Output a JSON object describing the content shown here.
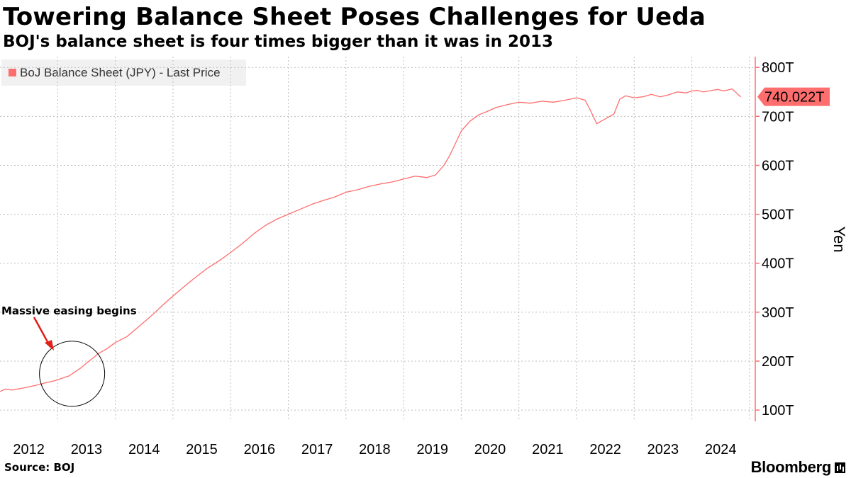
{
  "header": {
    "title": "Towering Balance Sheet Poses Challenges for Ueda",
    "subtitle": "BOJ's balance sheet is four times bigger than it was in 2013"
  },
  "footer": {
    "source": "Source: BOJ",
    "brand": "Bloomberg"
  },
  "colors": {
    "series": "#ff6e6e",
    "axis": "#ff6e6e",
    "grid": "#bdbdbd"
  },
  "chart_data": {
    "type": "line",
    "title": "Towering Balance Sheet Poses Challenges for Ueda",
    "subtitle": "BOJ's balance sheet is four times bigger than it was in 2013",
    "xlabel": "",
    "ylabel": "Yen",
    "ylim": [
      77,
      822
    ],
    "xlim": [
      2012.0,
      2025.1
    ],
    "y_ticks": [
      100,
      200,
      300,
      400,
      500,
      600,
      700,
      800
    ],
    "y_tick_labels": [
      "100T",
      "200T",
      "300T",
      "400T",
      "500T",
      "600T",
      "700T",
      "800T"
    ],
    "x_tick_labels": [
      "2012",
      "2013",
      "2014",
      "2015",
      "2016",
      "2017",
      "2018",
      "2019",
      "2020",
      "2021",
      "2022",
      "2023",
      "2024"
    ],
    "x_tick_positions": [
      2012,
      2013,
      2014,
      2015,
      2016,
      2017,
      2018,
      2019,
      2020,
      2021,
      2022,
      2023,
      2024
    ],
    "legend": {
      "label": "BoJ Balance Sheet (JPY) - Last Price",
      "position": "top-left"
    },
    "last_value": {
      "label": "740.022T",
      "value": 740.022
    },
    "annotation": {
      "text": "Massive easing begins",
      "target_x": 2013.25,
      "target_y": 180
    },
    "grid": true,
    "series": [
      {
        "name": "BoJ Balance Sheet (JPY) - Last Price",
        "x": [
          2012.0,
          2012.1,
          2012.2,
          2012.4,
          2012.6,
          2012.8,
          2012.95,
          2013.0,
          2013.1,
          2013.2,
          2013.3,
          2013.4,
          2013.5,
          2013.6,
          2013.7,
          2013.85,
          2014.0,
          2014.2,
          2014.4,
          2014.6,
          2014.8,
          2015.0,
          2015.2,
          2015.4,
          2015.6,
          2015.8,
          2016.0,
          2016.2,
          2016.4,
          2016.6,
          2016.8,
          2017.0,
          2017.2,
          2017.4,
          2017.6,
          2017.8,
          2018.0,
          2018.2,
          2018.4,
          2018.6,
          2018.8,
          2019.0,
          2019.2,
          2019.4,
          2019.55,
          2019.7,
          2019.8,
          2019.9,
          2020.0,
          2020.15,
          2020.3,
          2020.45,
          2020.6,
          2020.8,
          2021.0,
          2021.2,
          2021.4,
          2021.6,
          2021.8,
          2022.0,
          2022.15,
          2022.25,
          2022.35,
          2022.5,
          2022.65,
          2022.75,
          2022.85,
          2023.0,
          2023.15,
          2023.3,
          2023.45,
          2023.6,
          2023.75,
          2023.9,
          2024.0,
          2024.1,
          2024.2,
          2024.3,
          2024.45,
          2024.55,
          2024.7,
          2024.8,
          2024.85
        ],
        "values": [
          138,
          143,
          141,
          145,
          150,
          156,
          160,
          162,
          166,
          170,
          178,
          186,
          196,
          205,
          215,
          225,
          238,
          250,
          270,
          290,
          312,
          333,
          353,
          372,
          390,
          405,
          422,
          440,
          460,
          477,
          490,
          500,
          510,
          520,
          528,
          535,
          545,
          550,
          557,
          562,
          566,
          572,
          578,
          575,
          580,
          600,
          620,
          645,
          670,
          690,
          703,
          710,
          718,
          724,
          729,
          727,
          731,
          729,
          733,
          738,
          733,
          710,
          685,
          695,
          705,
          735,
          742,
          738,
          740,
          745,
          740,
          744,
          750,
          748,
          752,
          753,
          750,
          752,
          755,
          752,
          756,
          745,
          740
        ]
      }
    ]
  }
}
